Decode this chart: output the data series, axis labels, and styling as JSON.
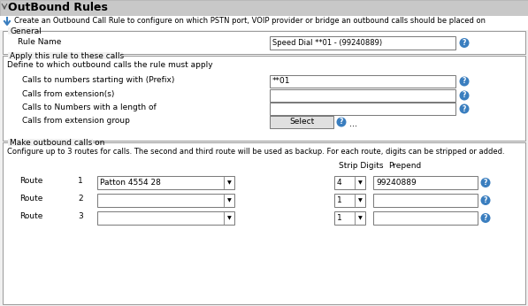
{
  "title": "OutBound Rules",
  "subtitle": "Create an Outbound Call Rule to configure on which PSTN port, VOIP provider or bridge an outbound calls should be placed on",
  "bg_color": "#f0f0f0",
  "panel_bg": "#ffffff",
  "header_bg": "#c8c8c8",
  "section_border": "#999999",
  "text_color": "#000000",
  "input_bg": "#ffffff",
  "input_border": "#777777",
  "button_bg": "#e0e0e0",
  "help_color": "#3a7ebf",
  "general_label": "General",
  "rule_name_label": "Rule Name",
  "rule_name_value": "Speed Dial **01 - (99240889)",
  "section2_label": "Apply this rule to these calls",
  "section2_sub": "Define to which outbound calls the rule must apply",
  "fields": [
    {
      "label": "Calls to numbers starting with (Prefix)",
      "value": "**01"
    },
    {
      "label": "Calls from extension(s)",
      "value": ""
    },
    {
      "label": "Calls to Numbers with a length of",
      "value": ""
    },
    {
      "label": "Calls from extension group",
      "value": "Select",
      "type": "button"
    }
  ],
  "section3_label": "Make outbound calls on",
  "section3_sub": "Configure up to 3 routes for calls. The second and third route will be used as backup. For each route, digits can be stripped or added.",
  "routes": [
    {
      "num": "1",
      "dropdown": "Patton 4554 28",
      "strip": "4",
      "prepend": "99240889"
    },
    {
      "num": "2",
      "dropdown": "",
      "strip": "1",
      "prepend": ""
    },
    {
      "num": "3",
      "dropdown": "",
      "strip": "1",
      "prepend": ""
    }
  ]
}
